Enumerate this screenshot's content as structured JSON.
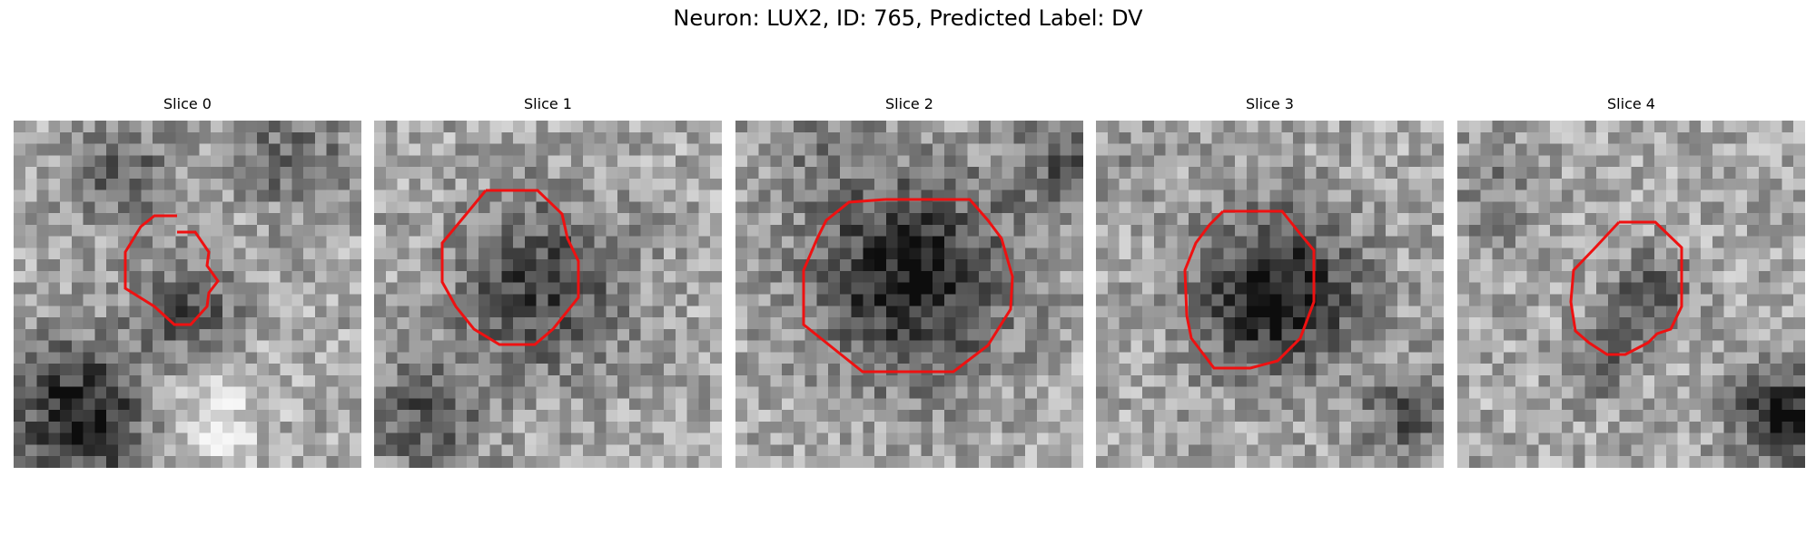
{
  "figure": {
    "suptitle": "Neuron: LUX2, ID: 765, Predicted Label: DV",
    "contour_color": "#ee1111"
  },
  "panels": [
    {
      "title": "Slice 0"
    },
    {
      "title": "Slice 1"
    },
    {
      "title": "Slice 2"
    },
    {
      "title": "Slice 3"
    },
    {
      "title": "Slice 4"
    }
  ]
}
